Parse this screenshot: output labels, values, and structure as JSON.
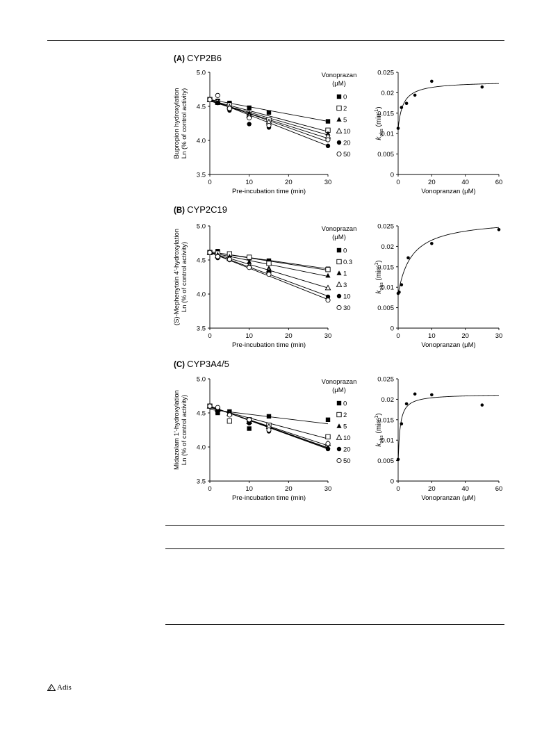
{
  "publisher_logo": "Adis",
  "chart_data": [
    {
      "type": "scatter",
      "panel": "(A)",
      "enzyme": "CYP2B6",
      "ylabel_lines": [
        "Bupropion hydroxylation",
        "Ln (% of control activity)"
      ],
      "xlabel": "Pre-incubation time (min)",
      "xlim": [
        0,
        30
      ],
      "ylim": [
        3.5,
        5.0
      ],
      "xticks": [
        "0",
        "10",
        "20",
        "30"
      ],
      "yticks": [
        "3.5",
        "4.0",
        "4.5",
        "5.0"
      ],
      "legend_title_lines": [
        "Vonoprazan",
        "(μM)"
      ],
      "series": [
        {
          "name": "0",
          "marker": "filled-square",
          "x": [
            0,
            2,
            5,
            10,
            15,
            30
          ],
          "y": [
            4.6,
            4.58,
            4.55,
            4.48,
            4.41,
            4.28
          ],
          "fit": [
            4.6,
            4.28
          ]
        },
        {
          "name": "2",
          "marker": "open-square",
          "x": [
            0,
            2,
            5,
            10,
            15,
            30
          ],
          "y": [
            4.6,
            4.56,
            4.52,
            4.38,
            4.3,
            4.15
          ],
          "fit": [
            4.59,
            4.13
          ]
        },
        {
          "name": "5",
          "marker": "filled-triangle",
          "x": [
            0,
            2,
            5,
            10,
            15,
            30
          ],
          "y": [
            4.6,
            4.55,
            4.5,
            4.4,
            4.28,
            4.1
          ],
          "fit": [
            4.58,
            4.08
          ]
        },
        {
          "name": "10",
          "marker": "open-triangle",
          "x": [
            0,
            2,
            5,
            10,
            15,
            30
          ],
          "y": [
            4.6,
            4.57,
            4.49,
            4.36,
            4.27,
            4.06
          ],
          "fit": [
            4.58,
            4.03
          ]
        },
        {
          "name": "20",
          "marker": "filled-circle",
          "x": [
            0,
            2,
            5,
            10,
            15,
            30
          ],
          "y": [
            4.6,
            4.55,
            4.44,
            4.24,
            4.19,
            3.92
          ],
          "fit": [
            4.6,
            3.92
          ]
        },
        {
          "name": "50",
          "marker": "open-circle",
          "x": [
            0,
            2,
            5,
            10,
            15,
            30
          ],
          "y": [
            4.6,
            4.66,
            4.47,
            4.33,
            4.22,
            4.01
          ],
          "fit": [
            4.6,
            3.98
          ]
        }
      ],
      "kobs": {
        "xlabel": "Vonopranzan (μM)",
        "ylabel": "kobs (min-1)",
        "xlim": [
          0,
          60
        ],
        "ylim": [
          0,
          0.025
        ],
        "xticks": [
          "0",
          "20",
          "40",
          "60"
        ],
        "yticks": [
          "0",
          "0.005",
          "0.01",
          "0.015",
          "0.02",
          "0.025"
        ],
        "points": {
          "x": [
            0,
            2,
            5,
            10,
            20,
            50
          ],
          "y": [
            0.0113,
            0.0164,
            0.0174,
            0.0194,
            0.0228,
            0.0214
          ]
        },
        "fit": {
          "k0": 0.0113,
          "kmax": 0.0115,
          "K": 3
        }
      }
    },
    {
      "type": "scatter",
      "panel": "(B)",
      "enzyme": "CYP2C19",
      "ylabel_lines": [
        "(S)-Mephenytoin 4'-hydroxylation",
        "Ln (% of control activity)"
      ],
      "xlabel": "Pre-incubation time (min)",
      "xlim": [
        0,
        30
      ],
      "ylim": [
        3.5,
        5.0
      ],
      "xticks": [
        "0",
        "10",
        "20",
        "30"
      ],
      "yticks": [
        "3.5",
        "4.0",
        "4.5",
        "5.0"
      ],
      "legend_title_lines": [
        "Vonoprazan",
        "(μM)"
      ],
      "series": [
        {
          "name": "0",
          "marker": "filled-square",
          "x": [
            0,
            2,
            5,
            10,
            15,
            30
          ],
          "y": [
            4.61,
            4.63,
            4.58,
            4.53,
            4.49,
            4.37
          ],
          "fit": [
            4.62,
            4.37
          ]
        },
        {
          "name": "0.3",
          "marker": "open-square",
          "x": [
            0,
            2,
            5,
            10,
            15,
            30
          ],
          "y": [
            4.61,
            4.6,
            4.59,
            4.54,
            4.45,
            4.36
          ],
          "fit": [
            4.62,
            4.35
          ]
        },
        {
          "name": "1",
          "marker": "filled-triangle",
          "x": [
            0,
            2,
            5,
            10,
            15,
            30
          ],
          "y": [
            4.61,
            4.58,
            4.55,
            4.47,
            4.38,
            4.27
          ],
          "fit": [
            4.61,
            4.26
          ]
        },
        {
          "name": "3",
          "marker": "open-triangle",
          "x": [
            0,
            2,
            5,
            10,
            15,
            30
          ],
          "y": [
            4.61,
            4.56,
            4.52,
            4.42,
            4.35,
            4.09
          ],
          "fit": [
            4.61,
            4.09
          ]
        },
        {
          "name": "10",
          "marker": "filled-circle",
          "x": [
            0,
            2,
            5,
            10,
            15,
            30
          ],
          "y": [
            4.61,
            4.53,
            4.5,
            4.4,
            4.33,
            3.96
          ],
          "fit": [
            4.61,
            3.97
          ]
        },
        {
          "name": "30",
          "marker": "open-circle",
          "x": [
            0,
            2,
            5,
            10,
            15,
            30
          ],
          "y": [
            4.61,
            4.55,
            4.51,
            4.39,
            4.29,
            3.91
          ],
          "fit": [
            4.61,
            3.92
          ]
        }
      ],
      "kobs": {
        "xlabel": "Vonopranzan (μM)",
        "ylabel": "kobs (min-1)",
        "xlim": [
          0,
          30
        ],
        "ylim": [
          0,
          0.025
        ],
        "xticks": [
          "0",
          "10",
          "20",
          "30"
        ],
        "yticks": [
          "0",
          "0.005",
          "0.01",
          "0.015",
          "0.02",
          "0.025"
        ],
        "points": {
          "x": [
            0,
            0.3,
            1,
            3,
            10,
            30
          ],
          "y": [
            0.0085,
            0.0088,
            0.0106,
            0.0172,
            0.0207,
            0.0241
          ]
        },
        "fit": {
          "k0": 0.0083,
          "kmax": 0.0185,
          "K": 4
        }
      }
    },
    {
      "type": "scatter",
      "panel": "(C)",
      "enzyme": "CYP3A4/5",
      "ylabel_lines": [
        "Midazolam 1'-hydroxylation",
        "Ln (% of control activity)"
      ],
      "xlabel": "Pre-incubation time (min)",
      "xlim": [
        0,
        30
      ],
      "ylim": [
        3.5,
        5.0
      ],
      "xticks": [
        "0",
        "10",
        "20",
        "30"
      ],
      "yticks": [
        "3.5",
        "4.0",
        "4.5",
        "5.0"
      ],
      "legend_title_lines": [
        "Vonoprazan",
        "(μM)"
      ],
      "series": [
        {
          "name": "0",
          "marker": "filled-square",
          "x": [
            0,
            2,
            5,
            10,
            15,
            30
          ],
          "y": [
            4.6,
            4.5,
            4.52,
            4.27,
            4.45,
            4.4
          ],
          "fit": [
            4.55,
            4.34
          ]
        },
        {
          "name": "2",
          "marker": "open-square",
          "x": [
            0,
            2,
            5,
            10,
            15,
            30
          ],
          "y": [
            4.6,
            4.55,
            4.38,
            4.4,
            4.32,
            4.15
          ],
          "fit": [
            4.58,
            4.12
          ]
        },
        {
          "name": "5",
          "marker": "filled-triangle",
          "x": [
            0,
            2,
            5,
            10,
            15,
            30
          ],
          "y": [
            4.6,
            4.52,
            4.5,
            4.38,
            4.28,
            4.0
          ],
          "fit": [
            4.6,
            3.99
          ]
        },
        {
          "name": "10",
          "marker": "open-triangle",
          "x": [
            0,
            2,
            5,
            10,
            15,
            30
          ],
          "y": [
            4.6,
            4.55,
            4.49,
            4.37,
            4.3,
            4.05
          ],
          "fit": [
            4.59,
            4.02
          ]
        },
        {
          "name": "20",
          "marker": "filled-circle",
          "x": [
            0,
            2,
            5,
            10,
            15,
            30
          ],
          "y": [
            4.6,
            4.53,
            4.48,
            4.35,
            4.23,
            3.97
          ],
          "fit": [
            4.6,
            3.97
          ]
        },
        {
          "name": "50",
          "marker": "open-circle",
          "x": [
            0,
            2,
            5,
            10,
            15,
            30
          ],
          "y": [
            4.6,
            4.58,
            4.47,
            4.4,
            4.25,
            4.05
          ],
          "fit": [
            4.6,
            3.98
          ]
        }
      ],
      "kobs": {
        "xlabel": "Vonopranzan (μM)",
        "ylabel": "kobs (min-1)",
        "xlim": [
          0,
          60
        ],
        "ylim": [
          0,
          0.025
        ],
        "xticks": [
          "0",
          "20",
          "40",
          "60"
        ],
        "yticks": [
          "0",
          "0.005",
          "0.01",
          "0.015",
          "0.02",
          "0.025"
        ],
        "points": {
          "x": [
            0,
            2,
            5,
            10,
            20,
            50
          ],
          "y": [
            0.0053,
            0.014,
            0.0189,
            0.0213,
            0.0211,
            0.0186
          ]
        },
        "fit": {
          "k0": 0.0048,
          "kmax": 0.0165,
          "K": 1.2
        }
      }
    }
  ]
}
